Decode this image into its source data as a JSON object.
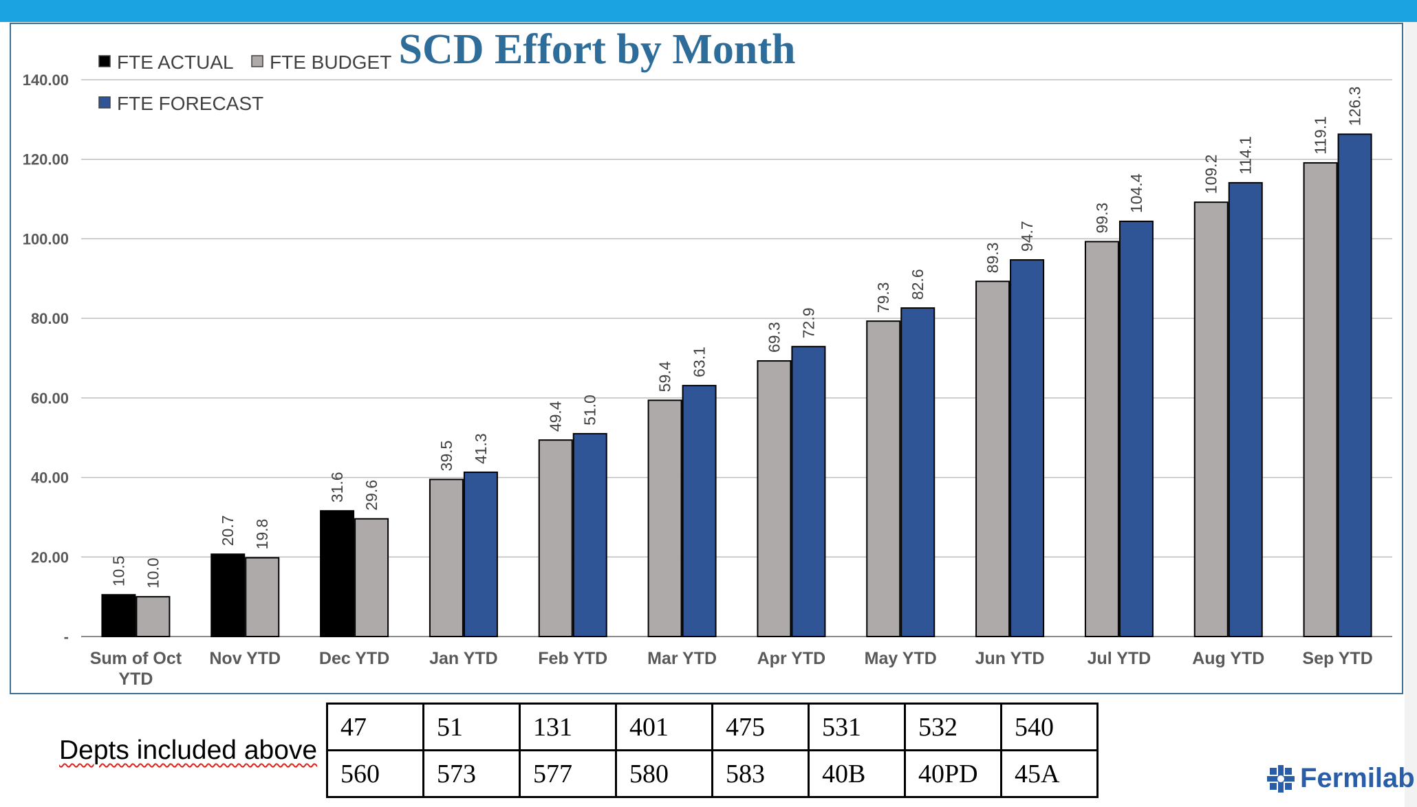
{
  "chart_data": {
    "type": "bar",
    "title": "SCD Effort by Month",
    "categories": [
      "Sum of Oct YTD",
      "Nov YTD",
      "Dec YTD",
      "Jan YTD",
      "Feb YTD",
      "Mar YTD",
      "Apr YTD",
      "May YTD",
      "Jun YTD",
      "Jul YTD",
      "Aug YTD",
      "Sep YTD"
    ],
    "series": [
      {
        "name": "FTE ACTUAL",
        "color": "#000000",
        "values": [
          10.5,
          20.7,
          31.6,
          null,
          null,
          null,
          null,
          null,
          null,
          null,
          null,
          null
        ]
      },
      {
        "name": "FTE BUDGET",
        "color": "#aeaaaa",
        "values": [
          10.0,
          19.8,
          29.6,
          39.5,
          49.4,
          59.4,
          69.3,
          79.3,
          89.3,
          99.3,
          109.2,
          119.1
        ]
      },
      {
        "name": "FTE FORECAST",
        "color": "#2f5597",
        "values": [
          null,
          null,
          null,
          41.3,
          51.0,
          63.1,
          72.9,
          82.6,
          94.7,
          104.4,
          114.1,
          126.3
        ]
      }
    ],
    "ylim": [
      0,
      140
    ],
    "yticks": [
      "-",
      "20.00",
      "40.00",
      "60.00",
      "80.00",
      "100.00",
      "120.00",
      "140.00"
    ],
    "xlabel": "",
    "ylabel": "",
    "grid": true,
    "legend": "top-left"
  },
  "depts": {
    "label": "Depts included above",
    "rows": [
      [
        "47",
        "51",
        "131",
        "401",
        "475",
        "531",
        "532",
        "540"
      ],
      [
        "560",
        "573",
        "577",
        "580",
        "583",
        "40B",
        "40PD",
        "45A"
      ]
    ]
  },
  "logo": {
    "text": "Fermilab",
    "icon": "fermilab-logo-icon"
  }
}
